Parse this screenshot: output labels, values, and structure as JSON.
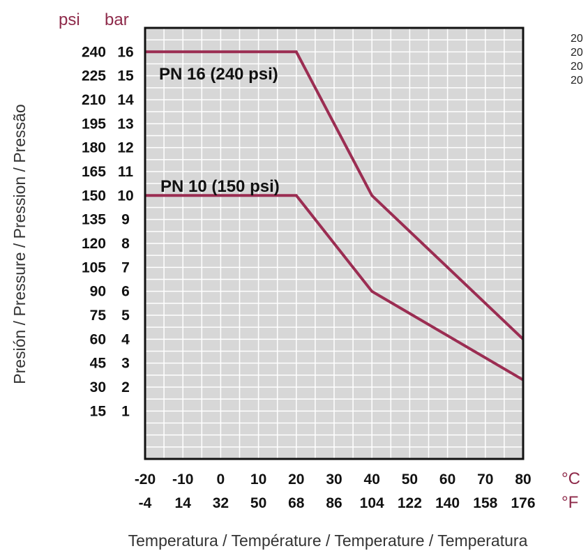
{
  "chart_data": {
    "type": "line",
    "y_axis_title": "Presión / Pressure / Pression / Pressão",
    "x_axis_title": "Temperatura / Température / Temperature / Temperatura",
    "x_unit_primary": "°C",
    "x_unit_secondary": "°F",
    "y_unit_primary": "bar",
    "y_unit_secondary": "psi",
    "x_ticks_c": [
      "-20",
      "-10",
      "0",
      "10",
      "20",
      "30",
      "40",
      "50",
      "60",
      "70",
      "80"
    ],
    "x_ticks_f": [
      "-4",
      "14",
      "32",
      "50",
      "68",
      "86",
      "104",
      "122",
      "140",
      "158",
      "176"
    ],
    "y_ticks_bar": [
      "1",
      "2",
      "3",
      "4",
      "5",
      "6",
      "7",
      "8",
      "9",
      "10",
      "11",
      "12",
      "13",
      "14",
      "15",
      "16"
    ],
    "y_ticks_psi": [
      "15",
      "30",
      "45",
      "60",
      "75",
      "90",
      "105",
      "120",
      "135",
      "150",
      "165",
      "180",
      "195",
      "210",
      "225",
      "240"
    ],
    "xlim": [
      -20,
      80
    ],
    "ylim": [
      -1,
      17
    ],
    "grid": true,
    "series": [
      {
        "name": "PN 16 (240 psi)",
        "x": [
          -20,
          20,
          40,
          80
        ],
        "y": [
          16,
          16,
          10,
          4
        ]
      },
      {
        "name": "PN 10 (150 psi)",
        "x": [
          -20,
          20,
          40,
          80
        ],
        "y": [
          10,
          10,
          6,
          2.3
        ]
      }
    ],
    "colors": {
      "line": "#9b2d52",
      "plot_bg": "#d7d7d7",
      "grid": "#ffffff",
      "unit_text": "#8e2a4a"
    }
  },
  "side_notes": [
    "20",
    "20",
    "20",
    "20"
  ]
}
